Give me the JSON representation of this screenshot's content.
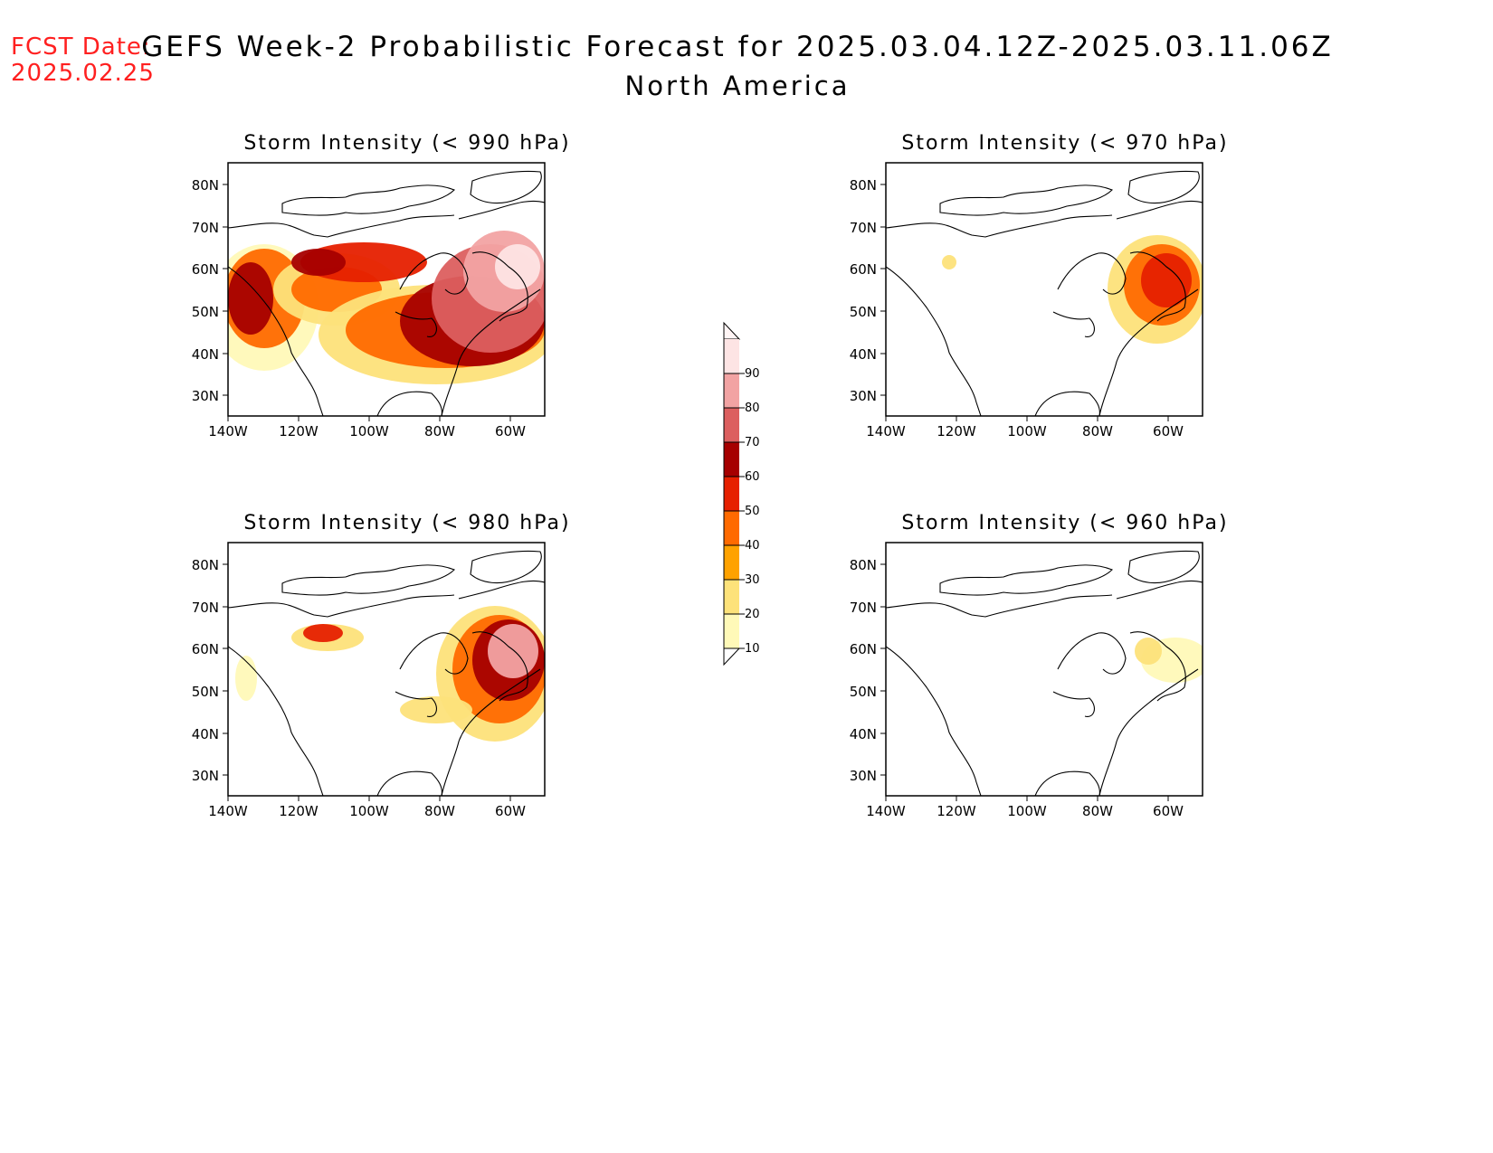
{
  "header": {
    "fcst_label": "FCST Date:",
    "fcst_date": "2025.02.25",
    "title": "GEFS Week-2 Probabilistic Forecast for 2025.03.04.12Z-2025.03.11.06Z",
    "subtitle": "North America"
  },
  "axes": {
    "lat_ticks": [
      "80N",
      "70N",
      "60N",
      "50N",
      "40N",
      "30N"
    ],
    "lon_ticks": [
      "140W",
      "120W",
      "100W",
      "80W",
      "60W"
    ]
  },
  "colorbar": {
    "levels": [
      "10",
      "20",
      "30",
      "40",
      "50",
      "60",
      "70",
      "80",
      "90"
    ],
    "colors": [
      "#fff9b8",
      "#fde27a",
      "#ffa200",
      "#ff6a00",
      "#e62000",
      "#a60000",
      "#dc5f5f",
      "#f2a3a3",
      "#fde4e4"
    ]
  },
  "panels": [
    {
      "title": "Storm Intensity (< 990 hPa)"
    },
    {
      "title": "Storm Intensity (< 970 hPa)"
    },
    {
      "title": "Storm Intensity (< 980 hPa)"
    },
    {
      "title": "Storm Intensity (< 960 hPa)"
    }
  ]
}
